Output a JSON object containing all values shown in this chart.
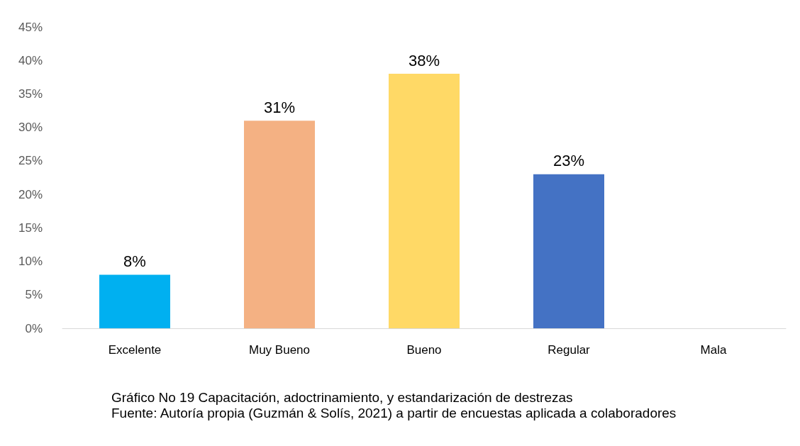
{
  "chart_data": {
    "type": "bar",
    "categories": [
      "Excelente",
      "Muy Bueno",
      "Bueno",
      "Regular",
      "Mala"
    ],
    "values": [
      8,
      31,
      38,
      23,
      0
    ],
    "colors": [
      "#00b0f0",
      "#f4b183",
      "#ffd966",
      "#4472c4",
      "#a5a5a5"
    ],
    "value_labels": [
      "8%",
      "31%",
      "38%",
      "23%",
      null
    ],
    "ylim": [
      0,
      45
    ],
    "yticks": [
      {
        "value": 0,
        "label": "0%"
      },
      {
        "value": 5,
        "label": "5%"
      },
      {
        "value": 10,
        "label": "10%"
      },
      {
        "value": 15,
        "label": "15%"
      },
      {
        "value": 20,
        "label": "20%"
      },
      {
        "value": 25,
        "label": "25%"
      },
      {
        "value": 30,
        "label": "30%"
      },
      {
        "value": 35,
        "label": "35%"
      },
      {
        "value": 40,
        "label": "40%"
      },
      {
        "value": 45,
        "label": "45%"
      }
    ],
    "grid": false,
    "annotations": [
      "Gráfico No 19 Capacitación, adoctrinamiento, y estandarización de destrezas",
      "Fuente: Autoría propia (Guzmán & Solís, 2021) a partir de encuestas aplicada a colaboradores"
    ]
  }
}
